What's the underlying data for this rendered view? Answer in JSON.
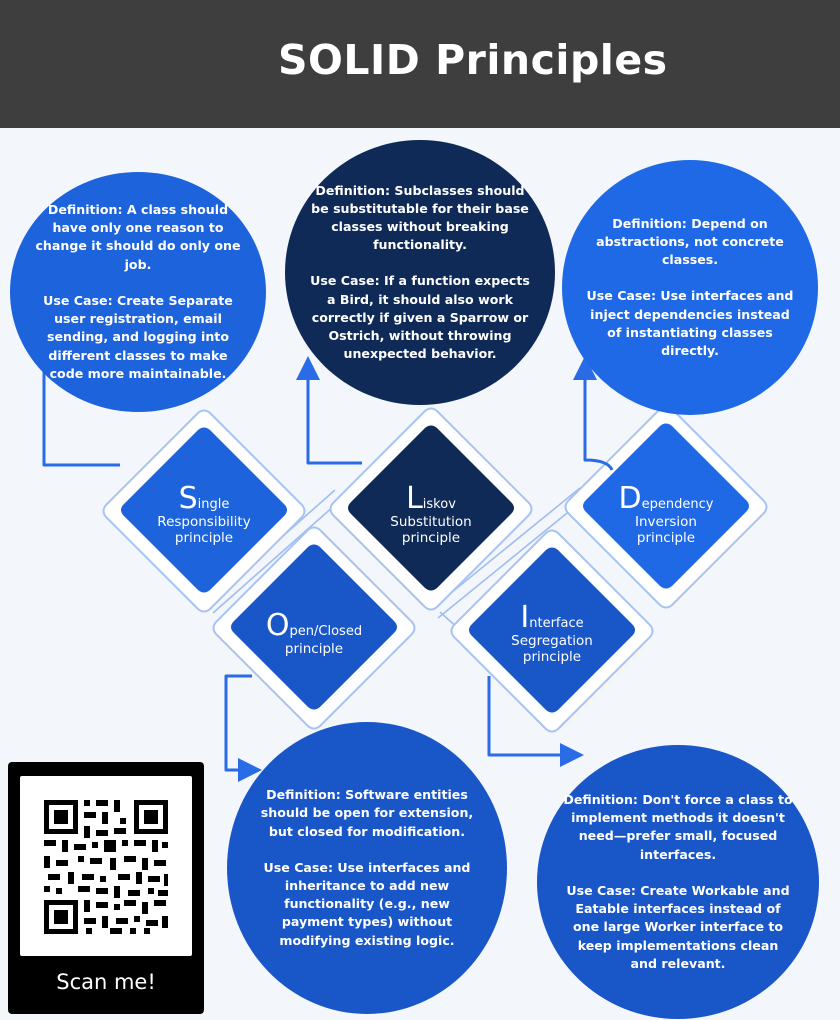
{
  "header": {
    "title": "SOLID Principles"
  },
  "principles": {
    "srp": {
      "initial": "S",
      "rest": "ingle",
      "line2": "Responsibility",
      "line3": "principle",
      "definition": "Definition: A class should have only one reason to change it should do only one job.",
      "use_case": "Use Case: Create Separate user registration, email sending, and logging into different classes to make code more maintainable."
    },
    "lsp": {
      "initial": "L",
      "rest": "iskov",
      "line2": "Substitution",
      "line3": "principle",
      "definition": "Definition: Subclasses should be substitutable for their base classes without breaking functionality.",
      "use_case": "Use Case: If a function expects a Bird, it should also work correctly if given a Sparrow or Ostrich, without throwing unexpected behavior."
    },
    "dip": {
      "initial": "D",
      "rest": "ependency",
      "line2": "Inversion",
      "line3": "principle",
      "definition": "Definition: Depend on abstractions, not concrete classes.",
      "use_case": "Use Case: Use interfaces and inject dependencies instead of instantiating classes directly."
    },
    "ocp": {
      "initial": "O",
      "rest": "pen/Closed",
      "line2": "principle",
      "definition": "Definition: Software entities should be open for extension, but closed for modification.",
      "use_case": "Use Case: Use interfaces and inheritance to add new functionality (e.g., new payment types) without modifying existing logic."
    },
    "isp": {
      "initial": "I",
      "rest": "nterface",
      "line2": "Segregation",
      "line3": "principle",
      "definition": "Definition: Don't force a class to implement methods it doesn't need—prefer small, focused interfaces.",
      "use_case": "Use Case: Create Workable and Eatable interfaces instead of one large Worker interface to keep implementations clean and relevant."
    }
  },
  "qr": {
    "caption": "Scan me!"
  },
  "colors": {
    "header_bg": "#3e3e3e",
    "page_bg": "#f3f6fb",
    "primary_blue": "#1d63db",
    "dark_navy": "#0f2a57",
    "mid_blue": "#1956c7",
    "connector": "#2a6be6"
  }
}
